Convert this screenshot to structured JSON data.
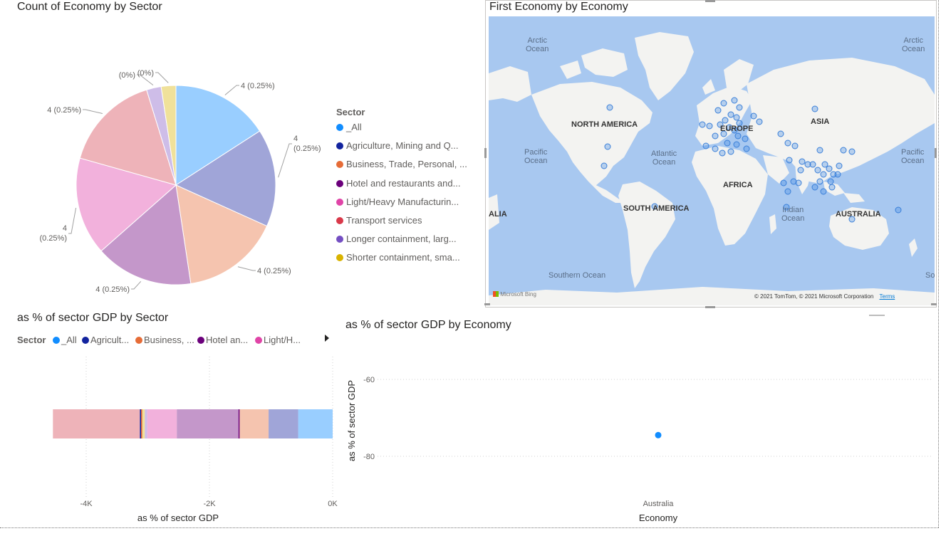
{
  "pie_visual": {
    "title": "Count of Economy by Sector",
    "legend_title": "Sector",
    "legend_items": [
      {
        "label": "_All",
        "color": "#118dff"
      },
      {
        "label": "Agriculture, Mining and Q...",
        "color": "#12239e"
      },
      {
        "label": "Business, Trade, Personal, ...",
        "color": "#e66c37"
      },
      {
        "label": "Hotel and restaurants and...",
        "color": "#6b007b"
      },
      {
        "label": "Light/Heavy Manufacturin...",
        "color": "#e044a7"
      },
      {
        "label": "Transport services",
        "color": "#d9394a"
      },
      {
        "label": "Longer containment, larg...",
        "color": "#744ec2"
      },
      {
        "label": "Shorter containment, sma...",
        "color": "#d9b300"
      }
    ]
  },
  "map_visual": {
    "title": "First Economy by Economy",
    "labels": {
      "arctic_left": [
        "Arctic",
        "Ocean"
      ],
      "arctic_right": [
        "Arctic",
        "Ocean"
      ],
      "north_america": "NORTH AMERICA",
      "europe": "EUROPE",
      "asia": "ASIA",
      "pacific_left": [
        "Pacific",
        "Ocean"
      ],
      "pacific_right": [
        "Pacific",
        "Ocean"
      ],
      "atlantic": [
        "Atlantic",
        "Ocean"
      ],
      "africa": "AFRICA",
      "south_america": "SOUTH AMERICA",
      "indian": [
        "Indian",
        "Ocean"
      ],
      "australia": "AUSTRALIA",
      "alia": "ALIA",
      "southern": "Southern Ocean",
      "so": "So"
    },
    "attribution": "© 2021 TomTom, © 2021 Microsoft Corporation",
    "terms": "Terms",
    "bing": "Microsoft Bing"
  },
  "bar_visual": {
    "title": "as % of sector GDP by Sector",
    "legend_title": "Sector",
    "legend_items": [
      {
        "label": "_All",
        "color": "#118dff"
      },
      {
        "label": "Agricult...",
        "color": "#12239e"
      },
      {
        "label": "Business, ...",
        "color": "#e66c37"
      },
      {
        "label": "Hotel an...",
        "color": "#6b007b"
      },
      {
        "label": "Light/H...",
        "color": "#e044a7"
      }
    ]
  },
  "scatter_visual": {
    "title": "as % of sector GDP by Economy"
  },
  "chart_data": [
    {
      "type": "pie",
      "title": "Count of Economy by Sector",
      "slices": [
        {
          "label": "4 (0.25%)",
          "value": 4,
          "color": "#99ceff"
        },
        {
          "label": "4 (0.25%)",
          "value": 4,
          "color": "#a0a5d8"
        },
        {
          "label": "4 (0.25%)",
          "value": 4,
          "color": "#f5c4af"
        },
        {
          "label": "4 (0.25%)",
          "value": 4,
          "color": "#c497ca"
        },
        {
          "label": "4 (0.25%)",
          "value": 4,
          "color": "#f2b1dc"
        },
        {
          "label": "4 (0.25%)",
          "value": 4,
          "color": "#eeb3b9"
        },
        {
          "label": "(0%)",
          "value": 0.6,
          "color": "#cebde8"
        },
        {
          "label": "(0%)",
          "value": 0.6,
          "color": "#f0e19a"
        }
      ],
      "legend_title": "Sector"
    },
    {
      "type": "bar",
      "title": "as % of sector GDP by Sector",
      "xlabel": "as % of sector GDP",
      "xlim": [
        -4800,
        0
      ],
      "x_ticks": [
        -4000,
        -2000,
        0
      ],
      "x_tick_labels": [
        "-4K",
        "-2K",
        "0K"
      ],
      "segments": [
        {
          "value": -560,
          "color": "#99ceff"
        },
        {
          "value": -480,
          "color": "#a0a5d8"
        },
        {
          "value": -470,
          "color": "#f5c4af"
        },
        {
          "value": -20,
          "color": "#6b007b"
        },
        {
          "value": -1000,
          "color": "#c497ca"
        },
        {
          "value": -480,
          "color": "#f2b1dc"
        },
        {
          "value": -40,
          "color": "#cebde8"
        },
        {
          "value": -40,
          "color": "#f0e19a"
        },
        {
          "value": -20,
          "color": "#e66c37"
        },
        {
          "value": -20,
          "color": "#12239e"
        },
        {
          "value": -1410,
          "color": "#eeb3b9"
        }
      ]
    },
    {
      "type": "scatter",
      "title": "as % of sector GDP by Economy",
      "xlabel": "Economy",
      "ylabel": "as % of sector GDP",
      "categories": [
        "Australia"
      ],
      "ylim": [
        -90,
        -55
      ],
      "y_ticks": [
        -60,
        -80
      ],
      "points": [
        {
          "x": "Australia",
          "y": -74.5,
          "color": "#118dff"
        }
      ]
    }
  ]
}
